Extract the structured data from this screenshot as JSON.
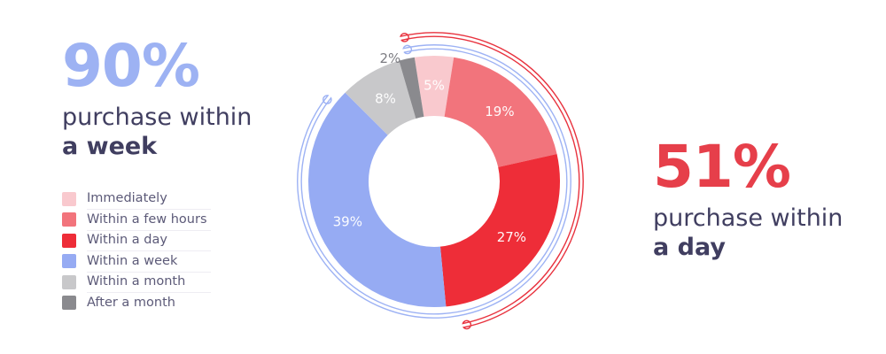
{
  "background": "#ffffff",
  "left_callout": {
    "stat": "90%",
    "line1": "purchase within",
    "line2": "a week",
    "stat_color": "#9db2f3",
    "text_color": "#403e60"
  },
  "right_callout": {
    "stat": "51%",
    "line1": "purchase within",
    "line2": "a day",
    "stat_color": "#e63f4a",
    "text_color": "#403e60"
  },
  "legend": {
    "text_color": "#5c5a78",
    "separator_color": "#eeedf3"
  },
  "chart_data": {
    "type": "pie",
    "subtype": "donut",
    "unit": "%",
    "start_angle_deg": -9,
    "clockwise": true,
    "categories": [
      "Immediately",
      "Within a few hours",
      "Within a day",
      "Within a week",
      "Within a month",
      "After a month"
    ],
    "values": [
      5,
      19,
      27,
      39,
      8,
      2
    ],
    "slices": [
      {
        "label": "Immediately",
        "value": 5,
        "color": "#f9c9ce",
        "data_label": "5%"
      },
      {
        "label": "Within a few hours",
        "value": 19,
        "color": "#f2747c",
        "data_label": "19%"
      },
      {
        "label": "Within a day",
        "value": 27,
        "color": "#ee2d38",
        "data_label": "27%"
      },
      {
        "label": "Within a week",
        "value": 39,
        "color": "#96abf3",
        "data_label": "39%"
      },
      {
        "label": "Within a month",
        "value": 8,
        "color": "#c8c8ca",
        "data_label": "8%"
      },
      {
        "label": "After a month",
        "value": 2,
        "color": "#8a8a8e",
        "data_label": "2%",
        "label_outside": true,
        "label_color": "#7c7c82"
      }
    ],
    "inside_label_color": "#ffffff",
    "annotation_arcs": [
      {
        "name": "90-percent-arc",
        "percent": 90,
        "color": "#9db2f4",
        "from_slice": 0,
        "through_slice": 3
      },
      {
        "name": "51-percent-arc",
        "percent": 51,
        "color": "#e8323e",
        "from_slice": 0,
        "through_slice": 2
      }
    ],
    "legend_position": "left",
    "title": ""
  }
}
